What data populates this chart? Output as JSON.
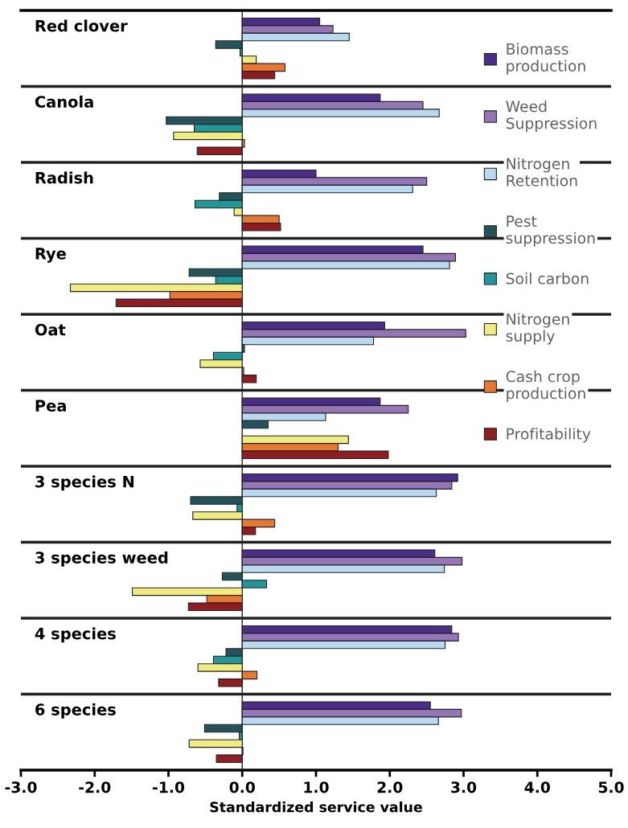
{
  "chart_data": {
    "type": "bar",
    "orientation": "horizontal",
    "xlabel": "Standardized service value",
    "categories": [
      "Red clover",
      "Canola",
      "Radish",
      "Rye",
      "Oat",
      "Pea",
      "3 species N",
      "3 species weed",
      "4 species",
      "6 species"
    ],
    "series": [
      {
        "name": "Biomass\nproduction",
        "color": "#4b2e8a",
        "values": [
          1.05,
          1.87,
          1.0,
          2.45,
          1.93,
          1.87,
          2.92,
          2.61,
          2.84,
          2.55
        ]
      },
      {
        "name": "Weed\nSuppression",
        "color": "#9575b5",
        "values": [
          1.23,
          2.45,
          2.5,
          2.89,
          3.03,
          2.25,
          2.84,
          2.98,
          2.93,
          2.97
        ]
      },
      {
        "name": "Nitrogen\nRetention",
        "color": "#b8d9f0",
        "values": [
          1.45,
          2.67,
          2.31,
          2.81,
          1.78,
          1.13,
          2.63,
          2.74,
          2.75,
          2.66
        ]
      },
      {
        "name": "Pest\nsuppression",
        "color": "#24535a",
        "values": [
          -0.36,
          -1.03,
          -0.31,
          -0.72,
          0.03,
          0.35,
          -0.7,
          -0.27,
          -0.22,
          -0.51
        ]
      },
      {
        "name": "Soil carbon",
        "color": "#23969a",
        "values": [
          -0.03,
          -0.65,
          -0.64,
          -0.36,
          -0.39,
          null,
          -0.07,
          0.33,
          -0.39,
          -0.04
        ]
      },
      {
        "name": "Nitrogen\nsupply",
        "color": "#f0ec80",
        "values": [
          0.19,
          -0.93,
          -0.11,
          -2.33,
          -0.57,
          1.44,
          -0.67,
          -1.49,
          -0.6,
          -0.72
        ]
      },
      {
        "name": "Cash crop\nproduction",
        "color": "#e87732",
        "values": [
          0.58,
          0.03,
          0.5,
          -0.98,
          0.02,
          1.3,
          0.44,
          -0.48,
          0.2,
          0.01
        ]
      },
      {
        "name": "Profitability",
        "color": "#8f1d22",
        "values": [
          0.44,
          -0.61,
          0.52,
          -1.71,
          0.19,
          1.98,
          0.18,
          -0.73,
          -0.32,
          -0.35
        ]
      }
    ],
    "xlim": [
      -3,
      5
    ],
    "xticks": [
      {
        "value": -3,
        "label": "-3.0"
      },
      {
        "value": -2,
        "label": "-2.0"
      },
      {
        "value": -1,
        "label": "-1.0"
      },
      {
        "value": 0,
        "label": "0.0"
      },
      {
        "value": 1,
        "label": "1.0"
      },
      {
        "value": 2,
        "label": "2.0"
      },
      {
        "value": 3,
        "label": "3.0"
      },
      {
        "value": 4,
        "label": "4.0"
      },
      {
        "value": 5,
        "label": "5.0"
      }
    ],
    "ref_lines": [
      {
        "axis": "x",
        "value": 0,
        "color": "#222222"
      }
    ],
    "legend": "right",
    "grid": false
  }
}
